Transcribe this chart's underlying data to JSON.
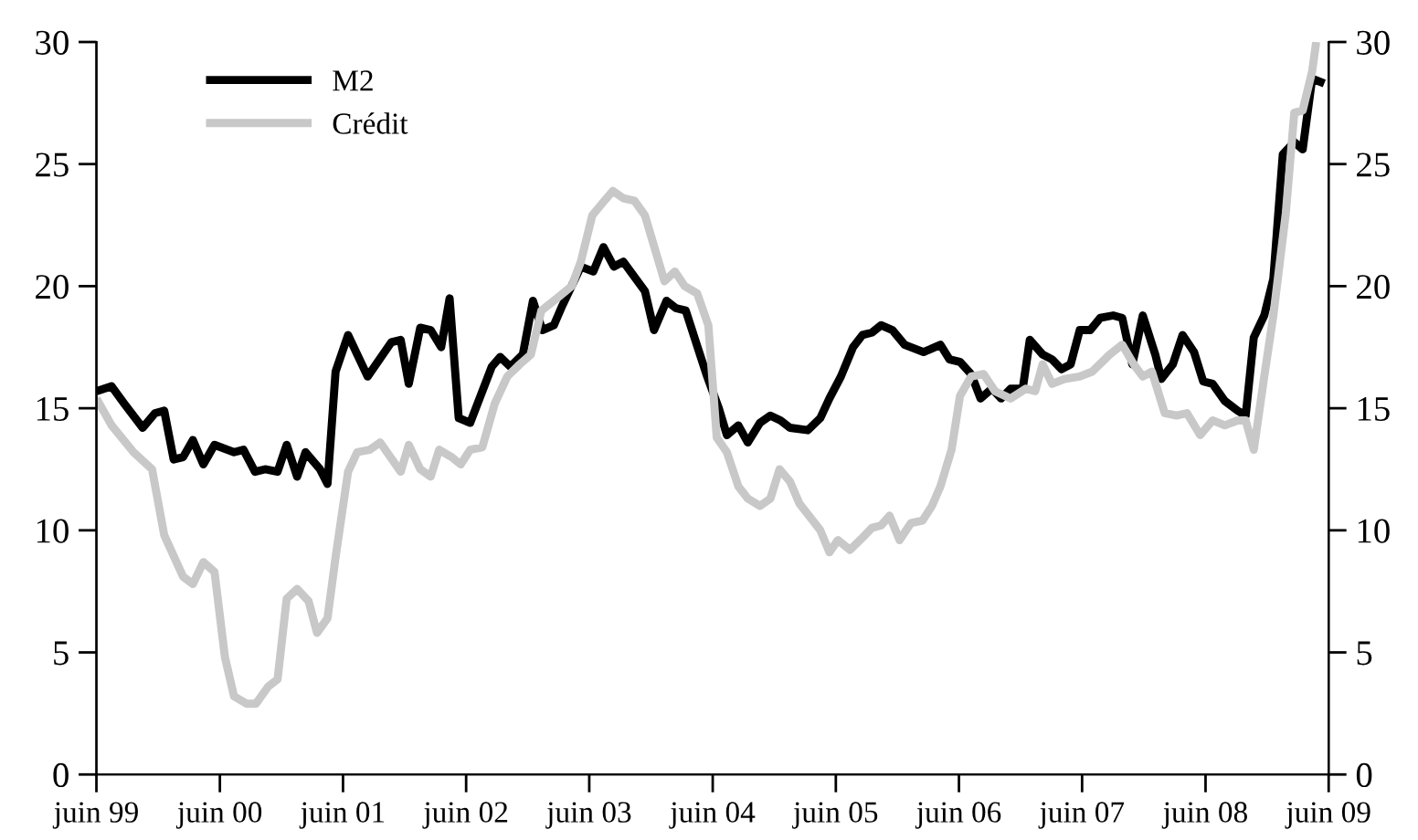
{
  "chart_data": {
    "type": "line",
    "xlim": [
      "1999-06",
      "2009-06"
    ],
    "xticks": [
      {
        "value": "1999-06",
        "label": "juin 99"
      },
      {
        "value": "2000-06",
        "label": "juin 00"
      },
      {
        "value": "2001-06",
        "label": "juin 01"
      },
      {
        "value": "2002-06",
        "label": "juin 02"
      },
      {
        "value": "2003-06",
        "label": "juin 03"
      },
      {
        "value": "2004-06",
        "label": "juin 04"
      },
      {
        "value": "2005-06",
        "label": "juin 05"
      },
      {
        "value": "2006-06",
        "label": "juin 06"
      },
      {
        "value": "2007-06",
        "label": "juin 07"
      },
      {
        "value": "2008-06",
        "label": "juin 08"
      },
      {
        "value": "2009-06",
        "label": "juin 09"
      }
    ],
    "ylim": [
      0,
      30
    ],
    "yticks": [
      0,
      5,
      10,
      15,
      20,
      25,
      30
    ],
    "y2lim": [
      0,
      30
    ],
    "y2ticks": [
      0,
      5,
      10,
      15,
      20,
      25,
      30
    ],
    "grid": false,
    "legend": "top left",
    "line_style": "solid",
    "series": [
      {
        "name": "M2",
        "color": "#000000",
        "x": [
          "1999-06-01",
          "1999-07-16",
          "1999-08-22",
          "1999-10-16",
          "1999-11-22",
          "1999-12-19",
          "2000-01-16",
          "2000-02-13",
          "2000-03-13",
          "2000-04-13",
          "2000-05-16",
          "2000-07-13",
          "2000-08-10",
          "2000-09-13",
          "2000-10-13",
          "2000-11-19",
          "2000-12-16",
          "2001-01-16",
          "2001-02-10",
          "2001-03-25",
          "2001-04-16",
          "2001-05-10",
          "2001-06-16",
          "2001-08-13",
          "2001-10-22",
          "2001-11-19",
          "2001-12-13",
          "2002-01-16",
          "2002-02-16",
          "2002-03-19",
          "2002-04-13",
          "2002-05-10",
          "2002-06-13",
          "2002-08-16",
          "2002-09-10",
          "2002-10-10",
          "2002-11-16",
          "2002-12-16",
          "2003-01-13",
          "2003-02-16",
          "2003-03-13",
          "2003-05-07",
          "2003-06-13",
          "2003-07-13",
          "2003-08-13",
          "2003-09-10",
          "2003-11-13",
          "2003-12-10",
          "2004-01-16",
          "2004-02-13",
          "2004-03-13",
          "2004-05-13",
          "2004-06-19",
          "2004-07-13",
          "2004-08-16",
          "2004-09-13",
          "2004-10-19",
          "2004-11-19",
          "2004-12-19",
          "2005-01-16",
          "2005-03-10",
          "2005-04-16",
          "2005-05-13",
          "2005-06-16",
          "2005-07-22",
          "2005-08-19",
          "2005-09-16",
          "2005-10-13",
          "2005-11-16",
          "2005-12-22",
          "2006-02-16",
          "2006-04-07",
          "2006-05-04",
          "2006-06-04",
          "2006-07-07",
          "2006-08-04",
          "2006-09-07",
          "2006-10-04",
          "2006-11-01",
          "2006-12-07",
          "2006-12-28",
          "2007-02-04",
          "2007-03-04",
          "2007-04-01",
          "2007-04-28",
          "2007-05-25",
          "2007-06-25",
          "2007-07-25",
          "2007-09-01",
          "2007-09-28",
          "2007-10-28",
          "2007-11-28",
          "2008-01-04",
          "2008-01-22",
          "2008-02-25",
          "2008-03-25",
          "2008-04-28",
          "2008-05-25",
          "2008-06-22",
          "2008-07-28",
          "2008-09-04",
          "2008-09-28",
          "2008-10-22",
          "2008-11-22",
          "2008-12-19",
          "2009-01-16",
          "2009-02-19",
          "2009-03-16",
          "2009-04-13",
          "2009-05-19"
        ],
        "values": [
          15.7,
          15.9,
          15.2,
          14.2,
          14.8,
          14.9,
          12.9,
          13.0,
          13.7,
          12.7,
          13.5,
          13.2,
          13.3,
          12.4,
          12.5,
          12.4,
          13.5,
          12.2,
          13.2,
          12.5,
          11.9,
          16.5,
          18.0,
          16.3,
          17.7,
          17.8,
          16.0,
          18.3,
          18.2,
          17.5,
          19.5,
          14.6,
          14.4,
          16.7,
          17.1,
          16.7,
          17.2,
          19.4,
          18.2,
          18.4,
          19.2,
          20.8,
          20.6,
          21.6,
          20.8,
          21.0,
          19.8,
          18.2,
          19.4,
          19.1,
          19.0,
          16.4,
          15.0,
          13.9,
          14.3,
          13.6,
          14.4,
          14.7,
          14.5,
          14.2,
          14.1,
          14.6,
          15.4,
          16.3,
          17.5,
          18.0,
          18.1,
          18.4,
          18.2,
          17.6,
          17.3,
          17.6,
          17.0,
          16.9,
          16.4,
          15.4,
          15.8,
          15.4,
          15.8,
          15.8,
          17.8,
          17.2,
          17.0,
          16.6,
          16.8,
          18.2,
          18.2,
          18.7,
          18.8,
          18.7,
          16.8,
          18.8,
          17.2,
          16.2,
          16.8,
          18.0,
          17.3,
          16.1,
          16.0,
          15.3,
          14.9,
          14.7,
          17.9,
          18.8,
          20.3,
          25.4,
          25.9,
          25.6,
          28.5,
          28.3
        ]
      },
      {
        "name": "Crédit",
        "color": "#c8c8c8",
        "x": [
          "1999-06-01",
          "1999-07-16",
          "1999-09-19",
          "1999-11-13",
          "1999-12-19",
          "2000-02-13",
          "2000-03-13",
          "2000-04-13",
          "2000-05-16",
          "2000-06-16",
          "2000-07-13",
          "2000-08-19",
          "2000-09-16",
          "2000-10-22",
          "2000-11-19",
          "2000-12-16",
          "2001-01-16",
          "2001-02-19",
          "2001-03-16",
          "2001-04-16",
          "2001-05-10",
          "2001-06-16",
          "2001-07-13",
          "2001-08-19",
          "2001-09-19",
          "2001-11-19",
          "2001-12-13",
          "2002-01-16",
          "2002-02-16",
          "2002-03-13",
          "2002-04-19",
          "2002-05-16",
          "2002-06-13",
          "2002-07-19",
          "2002-08-25",
          "2002-10-01",
          "2002-11-07",
          "2002-12-10",
          "2003-01-10",
          "2003-02-25",
          "2003-04-10",
          "2003-05-07",
          "2003-06-10",
          "2003-07-10",
          "2003-08-10",
          "2003-09-10",
          "2003-10-13",
          "2003-11-13",
          "2003-12-13",
          "2004-01-10",
          "2004-02-10",
          "2004-03-10",
          "2004-04-16",
          "2004-05-19",
          "2004-06-13",
          "2004-07-13",
          "2004-08-16",
          "2004-09-13",
          "2004-10-19",
          "2004-11-19",
          "2004-12-16",
          "2005-01-16",
          "2005-02-13",
          "2005-03-19",
          "2005-04-16",
          "2005-05-13",
          "2005-06-07",
          "2005-07-13",
          "2005-08-19",
          "2005-09-16",
          "2005-10-13",
          "2005-11-07",
          "2005-12-07",
          "2006-01-10",
          "2006-02-13",
          "2006-03-13",
          "2006-04-07",
          "2006-05-10",
          "2006-06-04",
          "2006-07-07",
          "2006-08-13",
          "2006-09-16",
          "2006-11-01",
          "2006-12-16",
          "2007-01-13",
          "2007-02-04",
          "2007-03-04",
          "2007-04-10",
          "2007-05-25",
          "2007-07-01",
          "2007-08-22",
          "2007-09-28",
          "2007-11-01",
          "2007-11-28",
          "2007-12-25",
          "2008-02-01",
          "2008-03-07",
          "2008-04-07",
          "2008-05-16",
          "2008-06-22",
          "2008-07-28",
          "2008-09-04",
          "2008-09-28",
          "2008-10-22",
          "2008-11-22",
          "2008-12-19",
          "2009-01-25",
          "2009-02-19",
          "2009-03-16",
          "2009-04-13",
          "2009-04-25"
        ],
        "values": [
          15.4,
          14.3,
          13.2,
          12.5,
          9.8,
          8.1,
          7.8,
          8.7,
          8.3,
          4.8,
          3.2,
          2.9,
          2.9,
          3.6,
          3.9,
          7.2,
          7.6,
          7.1,
          5.8,
          6.4,
          8.9,
          12.4,
          13.2,
          13.3,
          13.6,
          12.4,
          13.5,
          12.5,
          12.2,
          13.3,
          13.0,
          12.7,
          13.3,
          13.4,
          15.2,
          16.3,
          16.8,
          17.2,
          19.0,
          19.5,
          20.0,
          21.0,
          22.9,
          23.4,
          23.9,
          23.6,
          23.5,
          22.9,
          21.5,
          20.2,
          20.6,
          20.0,
          19.7,
          18.4,
          13.8,
          13.2,
          11.8,
          11.3,
          11.0,
          11.3,
          12.5,
          12.0,
          11.1,
          10.5,
          10.0,
          9.1,
          9.6,
          9.2,
          9.7,
          10.1,
          10.2,
          10.6,
          9.6,
          10.3,
          10.4,
          11.0,
          11.8,
          13.3,
          15.5,
          16.3,
          16.4,
          15.7,
          15.4,
          15.8,
          15.7,
          16.8,
          16.0,
          16.2,
          16.3,
          16.5,
          17.2,
          17.6,
          16.8,
          16.3,
          16.5,
          14.8,
          14.7,
          14.8,
          13.9,
          14.5,
          14.3,
          14.5,
          14.5,
          13.3,
          16.3,
          18.8,
          23.0,
          27.1,
          27.2,
          28.8,
          30.0
        ]
      }
    ]
  }
}
